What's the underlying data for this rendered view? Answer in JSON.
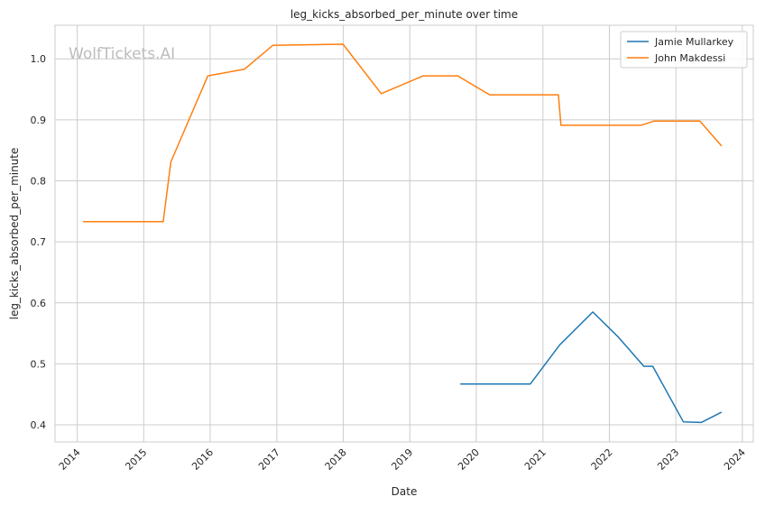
{
  "chart_data": {
    "type": "line",
    "title": "leg_kicks_absorbed_per_minute over time",
    "xlabel": "Date",
    "ylabel": "leg_kicks_absorbed_per_minute",
    "watermark": "WolfTickets.AI",
    "xlim": [
      "2013-09-01",
      "2024-03-01"
    ],
    "ylim": [
      0.372,
      1.055
    ],
    "x_ticks": [
      "2014",
      "2015",
      "2016",
      "2017",
      "2018",
      "2019",
      "2020",
      "2021",
      "2022",
      "2023",
      "2024"
    ],
    "y_ticks": [
      0.4,
      0.5,
      0.6,
      0.7,
      0.8,
      0.9,
      1.0
    ],
    "y_tick_labels": [
      "0.4",
      "0.5",
      "0.6",
      "0.7",
      "0.8",
      "0.9",
      "1.0"
    ],
    "grid": true,
    "legend_position": "top-right",
    "series": [
      {
        "name": "Jamie Mullarkey",
        "color": "#1f77b4",
        "x": [
          "2019-10-05",
          "2020-10-24",
          "2021-04-03",
          "2021-04-17",
          "2021-10-02",
          "2022-02-19",
          "2022-07-09",
          "2022-08-27",
          "2023-02-11",
          "2023-05-20",
          "2023-09-09"
        ],
        "y": [
          0.467,
          0.467,
          0.531,
          0.535,
          0.585,
          0.544,
          0.496,
          0.496,
          0.405,
          0.404,
          0.421
        ]
      },
      {
        "name": "John Makdessi",
        "color": "#ff7f0e",
        "x": [
          "2014-02-01",
          "2015-04-18",
          "2015-05-30",
          "2015-12-19",
          "2016-07-07",
          "2016-12-10",
          "2017-12-30",
          "2018-07-28",
          "2019-03-16",
          "2019-09-21",
          "2020-03-14",
          "2021-03-27",
          "2021-04-10",
          "2022-06-25",
          "2022-09-03",
          "2023-05-13",
          "2023-09-09"
        ],
        "y": [
          0.733,
          0.733,
          0.831,
          0.972,
          0.983,
          1.022,
          1.024,
          0.943,
          0.972,
          0.972,
          0.941,
          0.941,
          0.891,
          0.891,
          0.898,
          0.898,
          0.857
        ]
      }
    ]
  }
}
